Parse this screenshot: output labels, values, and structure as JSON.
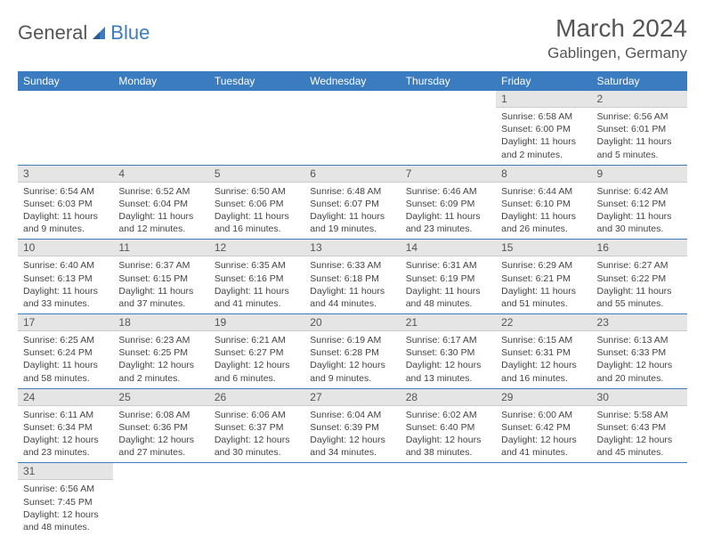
{
  "logo": {
    "text1": "General",
    "text2": "Blue"
  },
  "title": "March 2024",
  "location": "Gablingen, Germany",
  "colors": {
    "header_bg": "#3b7bbf",
    "header_text": "#ffffff",
    "daynum_bg": "#e5e5e5",
    "row_border": "#3b7bbf",
    "body_text": "#444444",
    "page_bg": "#ffffff"
  },
  "dayNames": [
    "Sunday",
    "Monday",
    "Tuesday",
    "Wednesday",
    "Thursday",
    "Friday",
    "Saturday"
  ],
  "weeks": [
    [
      null,
      null,
      null,
      null,
      null,
      {
        "n": "1",
        "sr": "Sunrise: 6:58 AM",
        "ss": "Sunset: 6:00 PM",
        "dl": "Daylight: 11 hours and 2 minutes."
      },
      {
        "n": "2",
        "sr": "Sunrise: 6:56 AM",
        "ss": "Sunset: 6:01 PM",
        "dl": "Daylight: 11 hours and 5 minutes."
      }
    ],
    [
      {
        "n": "3",
        "sr": "Sunrise: 6:54 AM",
        "ss": "Sunset: 6:03 PM",
        "dl": "Daylight: 11 hours and 9 minutes."
      },
      {
        "n": "4",
        "sr": "Sunrise: 6:52 AM",
        "ss": "Sunset: 6:04 PM",
        "dl": "Daylight: 11 hours and 12 minutes."
      },
      {
        "n": "5",
        "sr": "Sunrise: 6:50 AM",
        "ss": "Sunset: 6:06 PM",
        "dl": "Daylight: 11 hours and 16 minutes."
      },
      {
        "n": "6",
        "sr": "Sunrise: 6:48 AM",
        "ss": "Sunset: 6:07 PM",
        "dl": "Daylight: 11 hours and 19 minutes."
      },
      {
        "n": "7",
        "sr": "Sunrise: 6:46 AM",
        "ss": "Sunset: 6:09 PM",
        "dl": "Daylight: 11 hours and 23 minutes."
      },
      {
        "n": "8",
        "sr": "Sunrise: 6:44 AM",
        "ss": "Sunset: 6:10 PM",
        "dl": "Daylight: 11 hours and 26 minutes."
      },
      {
        "n": "9",
        "sr": "Sunrise: 6:42 AM",
        "ss": "Sunset: 6:12 PM",
        "dl": "Daylight: 11 hours and 30 minutes."
      }
    ],
    [
      {
        "n": "10",
        "sr": "Sunrise: 6:40 AM",
        "ss": "Sunset: 6:13 PM",
        "dl": "Daylight: 11 hours and 33 minutes."
      },
      {
        "n": "11",
        "sr": "Sunrise: 6:37 AM",
        "ss": "Sunset: 6:15 PM",
        "dl": "Daylight: 11 hours and 37 minutes."
      },
      {
        "n": "12",
        "sr": "Sunrise: 6:35 AM",
        "ss": "Sunset: 6:16 PM",
        "dl": "Daylight: 11 hours and 41 minutes."
      },
      {
        "n": "13",
        "sr": "Sunrise: 6:33 AM",
        "ss": "Sunset: 6:18 PM",
        "dl": "Daylight: 11 hours and 44 minutes."
      },
      {
        "n": "14",
        "sr": "Sunrise: 6:31 AM",
        "ss": "Sunset: 6:19 PM",
        "dl": "Daylight: 11 hours and 48 minutes."
      },
      {
        "n": "15",
        "sr": "Sunrise: 6:29 AM",
        "ss": "Sunset: 6:21 PM",
        "dl": "Daylight: 11 hours and 51 minutes."
      },
      {
        "n": "16",
        "sr": "Sunrise: 6:27 AM",
        "ss": "Sunset: 6:22 PM",
        "dl": "Daylight: 11 hours and 55 minutes."
      }
    ],
    [
      {
        "n": "17",
        "sr": "Sunrise: 6:25 AM",
        "ss": "Sunset: 6:24 PM",
        "dl": "Daylight: 11 hours and 58 minutes."
      },
      {
        "n": "18",
        "sr": "Sunrise: 6:23 AM",
        "ss": "Sunset: 6:25 PM",
        "dl": "Daylight: 12 hours and 2 minutes."
      },
      {
        "n": "19",
        "sr": "Sunrise: 6:21 AM",
        "ss": "Sunset: 6:27 PM",
        "dl": "Daylight: 12 hours and 6 minutes."
      },
      {
        "n": "20",
        "sr": "Sunrise: 6:19 AM",
        "ss": "Sunset: 6:28 PM",
        "dl": "Daylight: 12 hours and 9 minutes."
      },
      {
        "n": "21",
        "sr": "Sunrise: 6:17 AM",
        "ss": "Sunset: 6:30 PM",
        "dl": "Daylight: 12 hours and 13 minutes."
      },
      {
        "n": "22",
        "sr": "Sunrise: 6:15 AM",
        "ss": "Sunset: 6:31 PM",
        "dl": "Daylight: 12 hours and 16 minutes."
      },
      {
        "n": "23",
        "sr": "Sunrise: 6:13 AM",
        "ss": "Sunset: 6:33 PM",
        "dl": "Daylight: 12 hours and 20 minutes."
      }
    ],
    [
      {
        "n": "24",
        "sr": "Sunrise: 6:11 AM",
        "ss": "Sunset: 6:34 PM",
        "dl": "Daylight: 12 hours and 23 minutes."
      },
      {
        "n": "25",
        "sr": "Sunrise: 6:08 AM",
        "ss": "Sunset: 6:36 PM",
        "dl": "Daylight: 12 hours and 27 minutes."
      },
      {
        "n": "26",
        "sr": "Sunrise: 6:06 AM",
        "ss": "Sunset: 6:37 PM",
        "dl": "Daylight: 12 hours and 30 minutes."
      },
      {
        "n": "27",
        "sr": "Sunrise: 6:04 AM",
        "ss": "Sunset: 6:39 PM",
        "dl": "Daylight: 12 hours and 34 minutes."
      },
      {
        "n": "28",
        "sr": "Sunrise: 6:02 AM",
        "ss": "Sunset: 6:40 PM",
        "dl": "Daylight: 12 hours and 38 minutes."
      },
      {
        "n": "29",
        "sr": "Sunrise: 6:00 AM",
        "ss": "Sunset: 6:42 PM",
        "dl": "Daylight: 12 hours and 41 minutes."
      },
      {
        "n": "30",
        "sr": "Sunrise: 5:58 AM",
        "ss": "Sunset: 6:43 PM",
        "dl": "Daylight: 12 hours and 45 minutes."
      }
    ],
    [
      {
        "n": "31",
        "sr": "Sunrise: 6:56 AM",
        "ss": "Sunset: 7:45 PM",
        "dl": "Daylight: 12 hours and 48 minutes."
      },
      null,
      null,
      null,
      null,
      null,
      null
    ]
  ]
}
